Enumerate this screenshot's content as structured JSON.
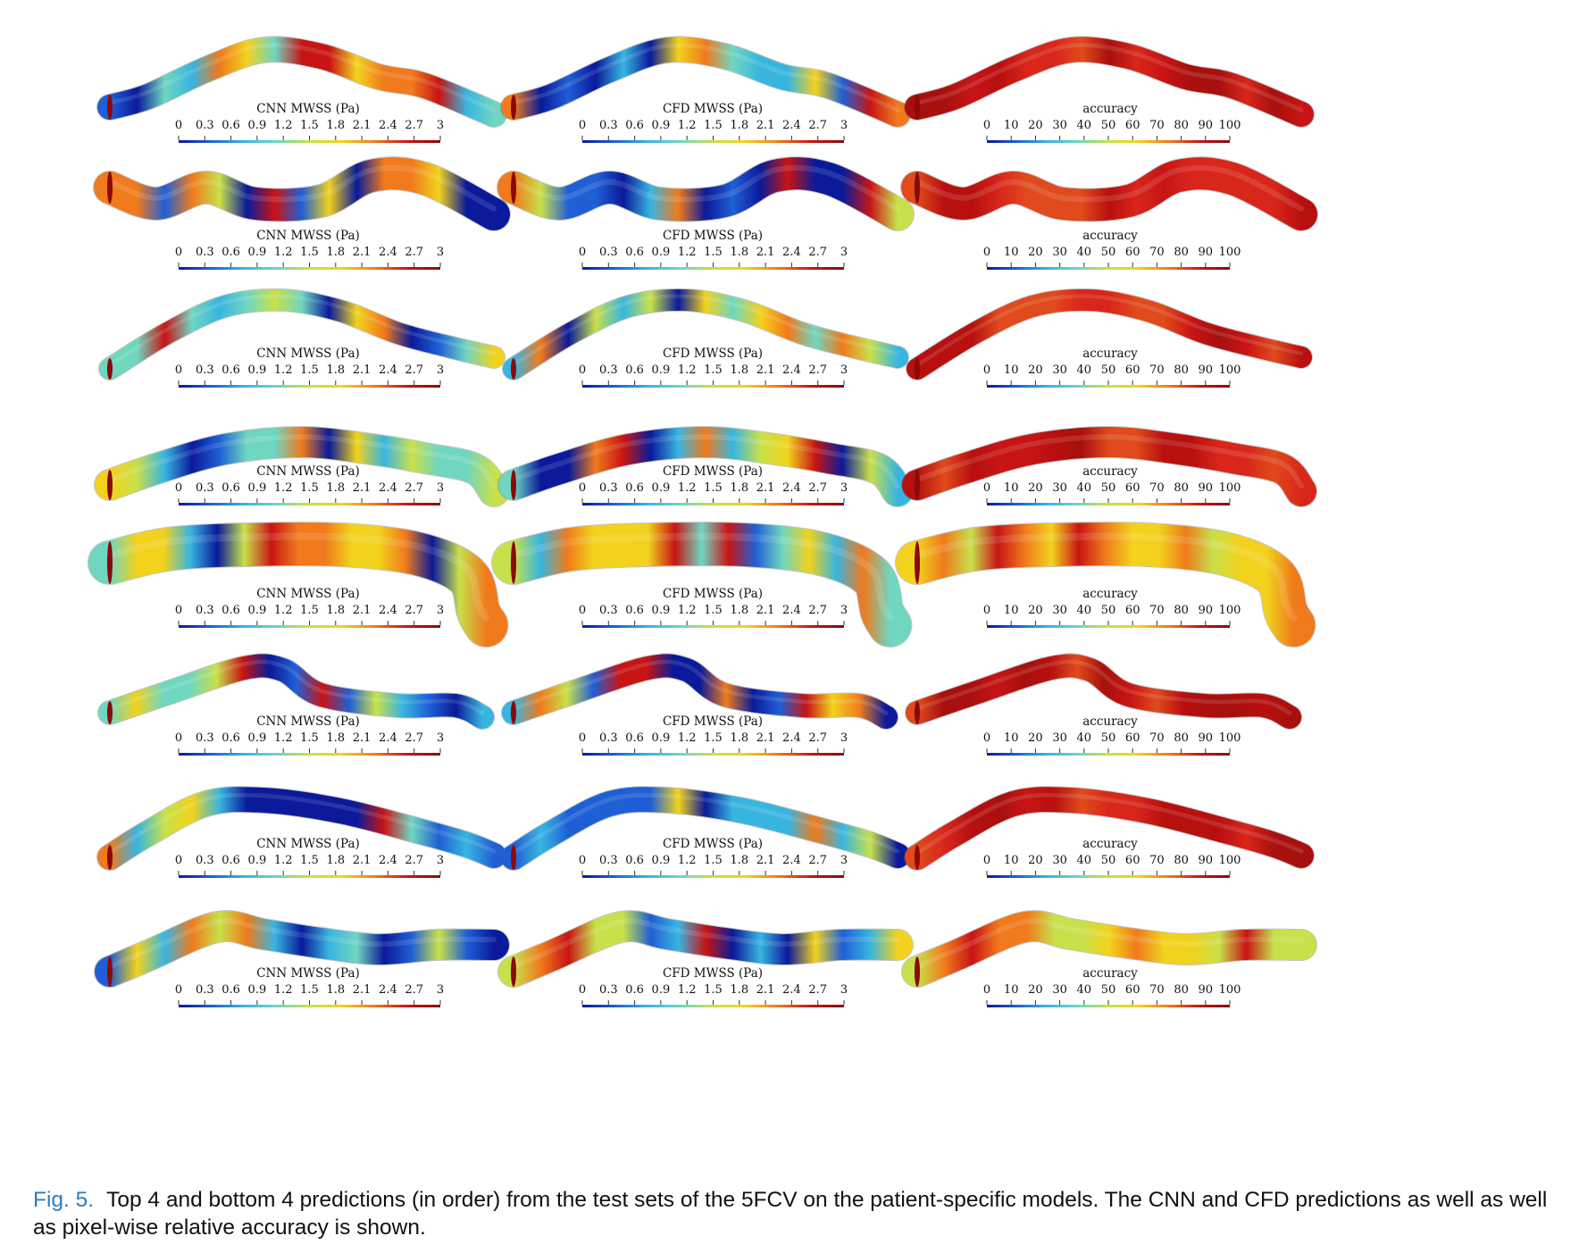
{
  "figure": {
    "colorbars": [
      {
        "kind": "cnn",
        "title": "CNN MWSS (Pa)",
        "ticks": [
          "0",
          "0.3",
          "0.6",
          "0.9",
          "1.2",
          "1.5",
          "1.8",
          "2.1",
          "2.4",
          "2.7",
          "3"
        ],
        "range": [
          0,
          3
        ]
      },
      {
        "kind": "cfd",
        "title": "CFD MWSS (Pa)",
        "ticks": [
          "0",
          "0.3",
          "0.6",
          "0.9",
          "1.2",
          "1.5",
          "1.8",
          "2.1",
          "2.4",
          "2.7",
          "3"
        ],
        "range": [
          0,
          3
        ]
      },
      {
        "kind": "accuracy",
        "title": "accuracy",
        "ticks": [
          "0",
          "10",
          "20",
          "30",
          "40",
          "50",
          "60",
          "70",
          "80",
          "90",
          "100"
        ],
        "range": [
          0,
          100
        ]
      }
    ],
    "colormap": [
      "#0a1a9a",
      "#1f5fd6",
      "#37b5e0",
      "#6fd6c0",
      "#c8e04a",
      "#f2d21c",
      "#f07a1c",
      "#c81414",
      "#8a0a0a"
    ],
    "rows": 8,
    "columns": 3
  },
  "caption": {
    "label": "Fig. 5.",
    "text": "Top 4 and bottom 4 predictions (in order) from the test sets of the 5FCV on the patient-specific models. The CNN and CFD predictions as well as well as pixel-wise relative accuracy is shown."
  }
}
